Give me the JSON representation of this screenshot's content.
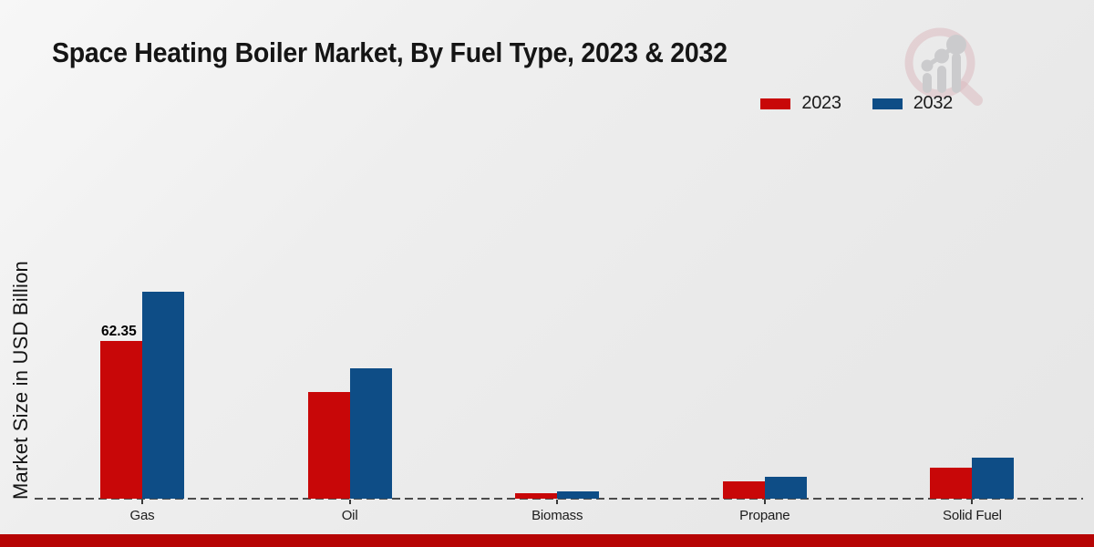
{
  "header": {
    "title": "Space Heating Boiler Market, By Fuel Type, 2023 & 2032"
  },
  "legend": {
    "items": [
      {
        "label": "2023",
        "color": "#c80708"
      },
      {
        "label": "2032",
        "color": "#0e4d86"
      }
    ]
  },
  "y_axis": {
    "label": "Market Size in USD Billion"
  },
  "watermark": {
    "icon": "magnifier-growth-chart-logo",
    "ring_color": "#d9b3b8",
    "bars_color": "#c6c6c8"
  },
  "footer": {
    "bar_color": "#b60404"
  },
  "chart_data": {
    "type": "bar",
    "title": "Space Heating Boiler Market, By Fuel Type, 2023 & 2032",
    "xlabel": "",
    "ylabel": "Market Size in USD Billion",
    "categories": [
      "Gas",
      "Oil",
      "Biomass",
      "Propane",
      "Solid Fuel"
    ],
    "series": [
      {
        "name": "2023",
        "color": "#c80708",
        "values": [
          62.35,
          42.2,
          2.0,
          6.7,
          12.3
        ]
      },
      {
        "name": "2032",
        "color": "#0e4d86",
        "values": [
          81.8,
          51.5,
          2.9,
          8.8,
          16.2
        ]
      }
    ],
    "annotations": [
      {
        "text": "62.35",
        "series_index": 0,
        "category_index": 0
      }
    ],
    "ylim": [
      0,
      90
    ],
    "grid": false,
    "axis_visible": false,
    "baseline_style": "dashed",
    "legend_position": "top-right"
  }
}
